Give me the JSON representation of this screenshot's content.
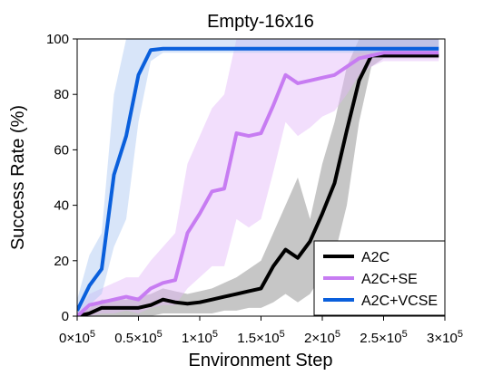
{
  "chart_data": {
    "type": "line",
    "title": "Empty-16x16",
    "xlabel": "Environment Step",
    "ylabel": "Success Rate (%)",
    "xlim": [
      0,
      300000
    ],
    "ylim": [
      0,
      100
    ],
    "x_ticks": [
      {
        "value": 0,
        "label": "0×10",
        "exp": "5"
      },
      {
        "value": 50000,
        "label": "0.5×10",
        "exp": "5"
      },
      {
        "value": 100000,
        "label": "1×10",
        "exp": "5"
      },
      {
        "value": 150000,
        "label": "1.5×10",
        "exp": "5"
      },
      {
        "value": 200000,
        "label": "2×10",
        "exp": "5"
      },
      {
        "value": 250000,
        "label": "2.5×10",
        "exp": "5"
      },
      {
        "value": 300000,
        "label": "3×10",
        "exp": "5"
      }
    ],
    "y_ticks": [
      {
        "value": 0,
        "label": "0"
      },
      {
        "value": 20,
        "label": "20"
      },
      {
        "value": 40,
        "label": "40"
      },
      {
        "value": 60,
        "label": "60"
      },
      {
        "value": 80,
        "label": "80"
      },
      {
        "value": 100,
        "label": "100"
      }
    ],
    "grid": false,
    "legend_position": "bottom-right",
    "series": [
      {
        "name": "A2C",
        "color": "#000000",
        "band_color": "#808080",
        "x": [
          0,
          10000,
          20000,
          30000,
          40000,
          50000,
          60000,
          70000,
          80000,
          90000,
          100000,
          110000,
          120000,
          130000,
          140000,
          150000,
          160000,
          170000,
          180000,
          190000,
          200000,
          210000,
          220000,
          230000,
          240000,
          250000,
          260000,
          270000,
          280000,
          295000
        ],
        "y": [
          0,
          1,
          3,
          3,
          3,
          3,
          4,
          6,
          5,
          4.5,
          5,
          6,
          7,
          8,
          9,
          10,
          18,
          24,
          21,
          27,
          37,
          48,
          67,
          85,
          94,
          94,
          94,
          94,
          94,
          94
        ],
        "upper": [
          0,
          3,
          6,
          6,
          6,
          7,
          8,
          10,
          9,
          8,
          9,
          10,
          12,
          14,
          17,
          20,
          30,
          40,
          50,
          35,
          55,
          70,
          90,
          100,
          100,
          100,
          100,
          100,
          100,
          100
        ],
        "lower": [
          0,
          0,
          0,
          0,
          0,
          0,
          0,
          1,
          1,
          1,
          1,
          1,
          2,
          2,
          3,
          3,
          5,
          8,
          5,
          8,
          15,
          22,
          40,
          70,
          90,
          93,
          93,
          93,
          93,
          93
        ]
      },
      {
        "name": "A2C+SE",
        "color": "#c77cf2",
        "band_color": "#e2b6f8",
        "x": [
          0,
          10000,
          20000,
          30000,
          40000,
          50000,
          60000,
          70000,
          80000,
          90000,
          100000,
          110000,
          120000,
          130000,
          140000,
          150000,
          160000,
          170000,
          180000,
          190000,
          200000,
          210000,
          220000,
          230000,
          240000,
          250000,
          260000,
          270000,
          280000,
          295000
        ],
        "y": [
          0,
          4,
          5,
          6,
          7,
          6,
          10,
          12,
          13,
          30,
          37,
          45,
          46,
          66,
          65,
          66,
          76,
          87,
          84,
          85,
          86,
          87,
          90,
          93,
          94,
          95,
          95,
          95,
          95,
          95
        ],
        "upper": [
          1,
          8,
          10,
          12,
          14,
          14,
          20,
          25,
          30,
          55,
          65,
          75,
          80,
          100,
          100,
          100,
          100,
          100,
          100,
          100,
          100,
          100,
          100,
          100,
          100,
          100,
          100,
          100,
          100,
          100
        ],
        "lower": [
          0,
          0,
          1,
          1,
          2,
          1,
          3,
          4,
          4,
          10,
          14,
          18,
          18,
          35,
          32,
          35,
          52,
          70,
          65,
          68,
          72,
          74,
          80,
          87,
          90,
          92,
          92,
          92,
          92,
          92
        ]
      },
      {
        "name": "A2C+VCSE",
        "color": "#0a5fdc",
        "band_color": "#a9c6f2",
        "x": [
          0,
          10000,
          20000,
          30000,
          40000,
          50000,
          60000,
          70000,
          80000,
          90000,
          100000,
          110000,
          120000,
          130000,
          140000,
          150000,
          160000,
          170000,
          180000,
          190000,
          200000,
          210000,
          220000,
          230000,
          240000,
          250000,
          260000,
          270000,
          280000,
          295000
        ],
        "y": [
          2,
          11,
          17,
          51,
          65,
          87,
          96,
          96.5,
          96.5,
          96.5,
          96.5,
          96.5,
          96.5,
          96.5,
          96.5,
          96.5,
          96.5,
          96.5,
          96.5,
          96.5,
          96.5,
          96.5,
          96.5,
          96.5,
          96.5,
          96.5,
          96.5,
          96.5,
          96.5,
          96.5
        ],
        "upper": [
          6,
          22,
          30,
          80,
          100,
          100,
          100,
          100,
          100,
          100,
          100,
          100,
          100,
          100,
          100,
          100,
          100,
          100,
          100,
          100,
          100,
          100,
          100,
          100,
          100,
          100,
          100,
          100,
          100,
          100
        ],
        "lower": [
          0,
          4,
          8,
          25,
          35,
          70,
          92,
          95,
          95,
          95,
          95,
          95,
          95,
          95,
          95,
          95,
          95,
          95,
          95,
          95,
          95,
          95,
          95,
          95,
          95,
          95,
          95,
          95,
          95,
          95
        ]
      }
    ]
  }
}
